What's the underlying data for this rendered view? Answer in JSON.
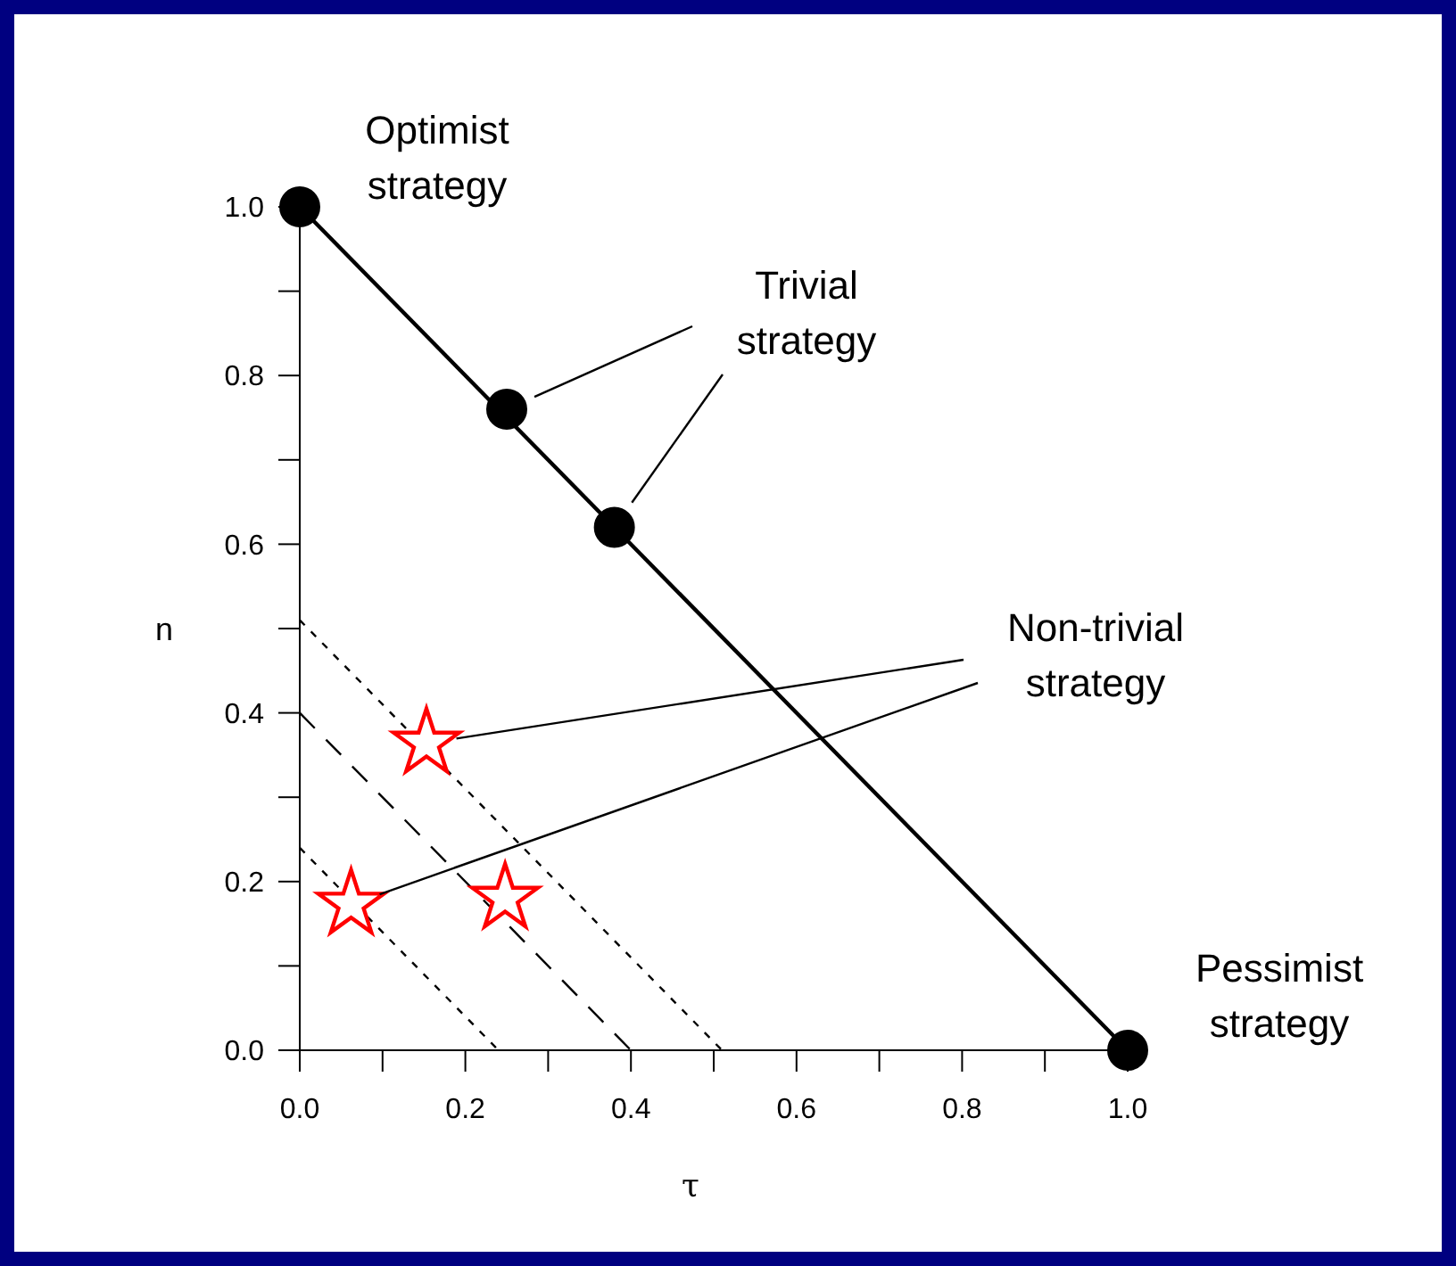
{
  "chart_data": {
    "type": "scatter",
    "xlabel": "τ",
    "ylabel": "n",
    "xlim": [
      0,
      1
    ],
    "ylim": [
      0,
      1
    ],
    "xticks": [
      {
        "value": 0,
        "label": "0.0"
      },
      {
        "value": 0.1,
        "label": null
      },
      {
        "value": 0.2,
        "label": "0.2"
      },
      {
        "value": 0.3,
        "label": null
      },
      {
        "value": 0.4,
        "label": "0.4"
      },
      {
        "value": 0.5,
        "label": null
      },
      {
        "value": 0.6,
        "label": "0.6"
      },
      {
        "value": 0.7,
        "label": null
      },
      {
        "value": 0.8,
        "label": "0.8"
      },
      {
        "value": 0.9,
        "label": null
      },
      {
        "value": 1,
        "label": "1.0"
      }
    ],
    "yticks": [
      {
        "value": 0,
        "label": "0.0"
      },
      {
        "value": 0.1,
        "label": null
      },
      {
        "value": 0.2,
        "label": "0.2"
      },
      {
        "value": 0.3,
        "label": null
      },
      {
        "value": 0.4,
        "label": "0.4"
      },
      {
        "value": 0.5,
        "label": null
      },
      {
        "value": 0.6,
        "label": "0.6"
      },
      {
        "value": 0.7,
        "label": null
      },
      {
        "value": 0.8,
        "label": "0.8"
      },
      {
        "value": 0.9,
        "label": null
      },
      {
        "value": 1,
        "label": "1.0"
      }
    ],
    "series": [
      {
        "type": "line",
        "color": "#000000",
        "x": [
          0,
          1
        ],
        "values": [
          1,
          0
        ],
        "marker": "none",
        "line_style": "solid"
      },
      {
        "type": "line",
        "color": "#000000",
        "x": [
          0,
          0.51
        ],
        "values": [
          0.51,
          0
        ],
        "marker": "none",
        "line_style": "dotted"
      },
      {
        "type": "line",
        "color": "#000000",
        "x": [
          0,
          0.4
        ],
        "values": [
          0.4,
          0
        ],
        "marker": "none",
        "line_style": "dashed"
      },
      {
        "type": "line",
        "color": "#000000",
        "x": [
          0,
          0.24
        ],
        "values": [
          0.24,
          0
        ],
        "marker": "none",
        "line_style": "dotted"
      },
      {
        "name": "Optimist strategy",
        "color": "#000000",
        "x": [
          0
        ],
        "values": [
          1
        ],
        "marker": "circle"
      },
      {
        "name": "Trivial strategy",
        "color": "#000000",
        "x": [
          0.25,
          0.38
        ],
        "values": [
          0.76,
          0.62
        ],
        "marker": "circle"
      },
      {
        "name": "Non-trivial strategy",
        "color": "#ff0000",
        "x": [
          0.153,
          0.062
        ],
        "values": [
          0.364,
          0.173
        ],
        "marker": "star"
      },
      {
        "color": "#ff0000",
        "x": [
          0.248
        ],
        "values": [
          0.18
        ],
        "marker": "star"
      },
      {
        "name": "Pessimist strategy",
        "color": "#000000",
        "x": [
          1
        ],
        "values": [
          0
        ],
        "marker": "circle"
      }
    ]
  }
}
